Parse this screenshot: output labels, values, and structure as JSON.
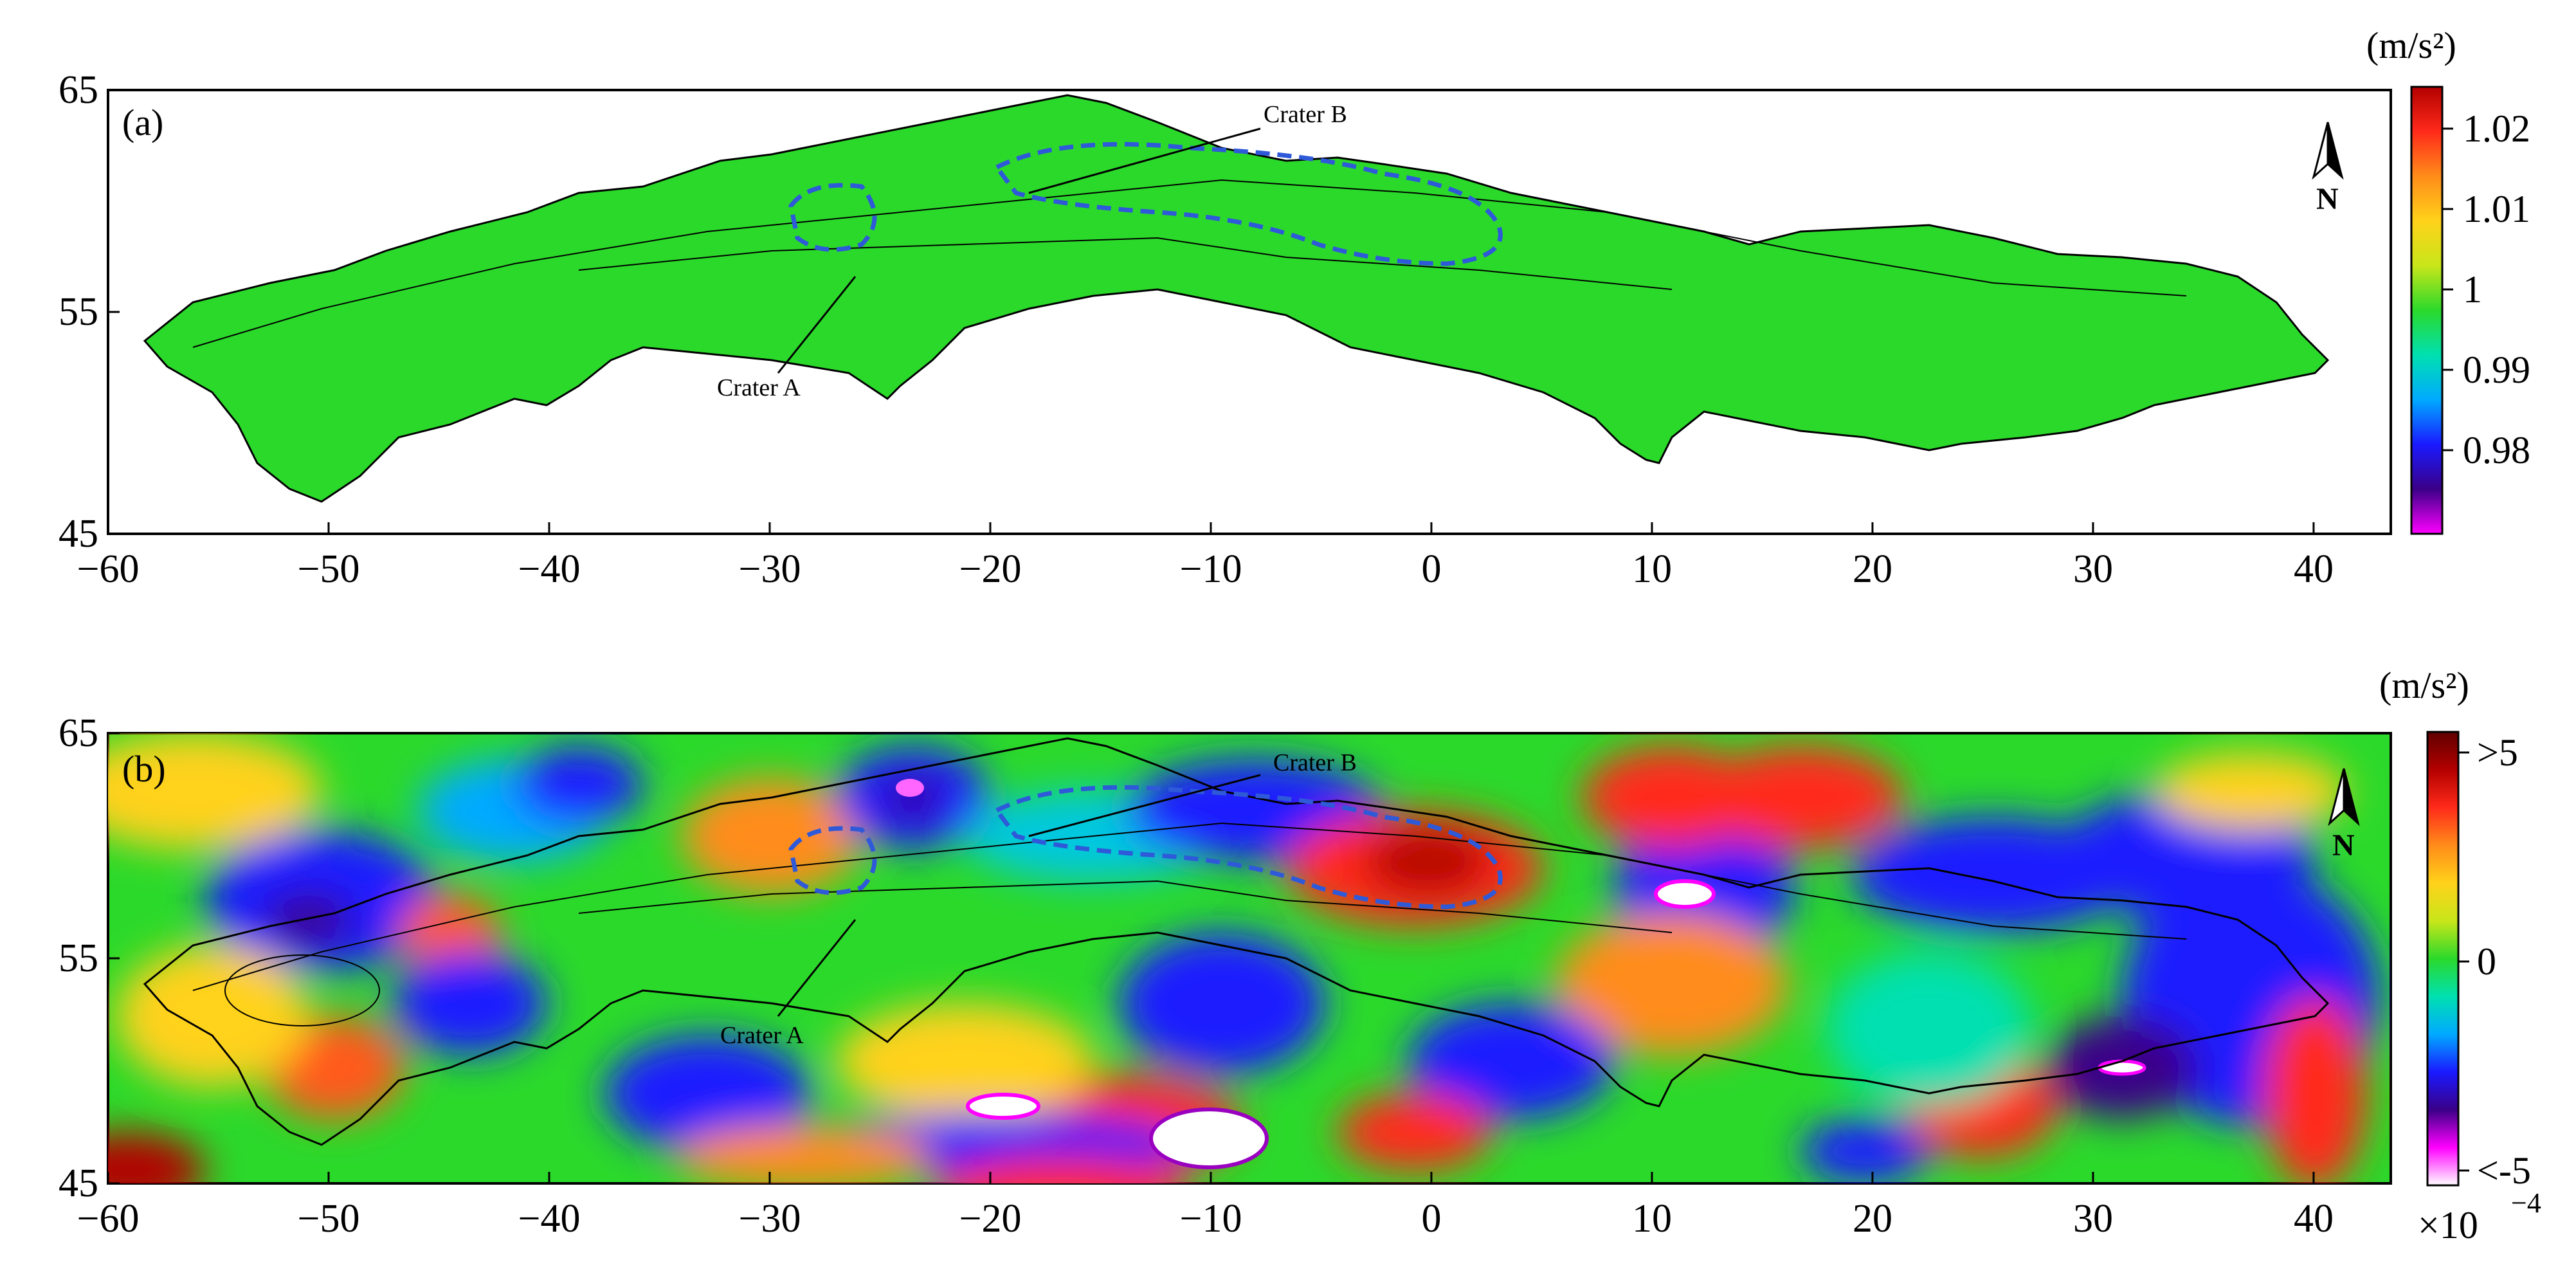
{
  "figure": {
    "panels": [
      {
        "id": "a",
        "tag": "(a)",
        "x_ticks": [
          "−60",
          "−50",
          "−40",
          "−30",
          "−20",
          "−10",
          "0",
          "10",
          "20",
          "30",
          "40"
        ],
        "y_ticks": [
          "65",
          "55",
          "45"
        ],
        "annotations": {
          "crater_a": "Crater A",
          "crater_b": "Crater B"
        },
        "north": "N",
        "colorbar": {
          "unit": "(m/s²)",
          "tick_labels": [
            "1.02",
            "1.01",
            "1",
            "0.99",
            "0.98"
          ],
          "colors": [
            "#ff00ff",
            "#3a0088",
            "#1a1aff",
            "#00aaff",
            "#00e0b0",
            "#2bd92b",
            "#c8e61a",
            "#ffd21a",
            "#ff8c1a",
            "#ff2a1a",
            "#b30000"
          ]
        }
      },
      {
        "id": "b",
        "tag": "(b)",
        "x_ticks": [
          "−60",
          "−50",
          "−40",
          "−30",
          "−20",
          "−10",
          "0",
          "10",
          "20",
          "30",
          "40"
        ],
        "y_ticks": [
          "65",
          "55",
          "45"
        ],
        "annotations": {
          "crater_a": "Crater A",
          "crater_b": "Crater B"
        },
        "north": "N",
        "colorbar": {
          "unit": "(m/s²)",
          "tick_labels": [
            ">5",
            "0",
            "<-5"
          ],
          "scale_base": "×10",
          "scale_exp": "−4",
          "colors": [
            "#ffffff",
            "#ff00ff",
            "#3a0088",
            "#1a1aff",
            "#00aaff",
            "#00e0b0",
            "#2bd92b",
            "#c8e61a",
            "#ffd21a",
            "#ff8c1a",
            "#ff2a1a",
            "#b30000",
            "#600000"
          ]
        }
      }
    ]
  }
}
